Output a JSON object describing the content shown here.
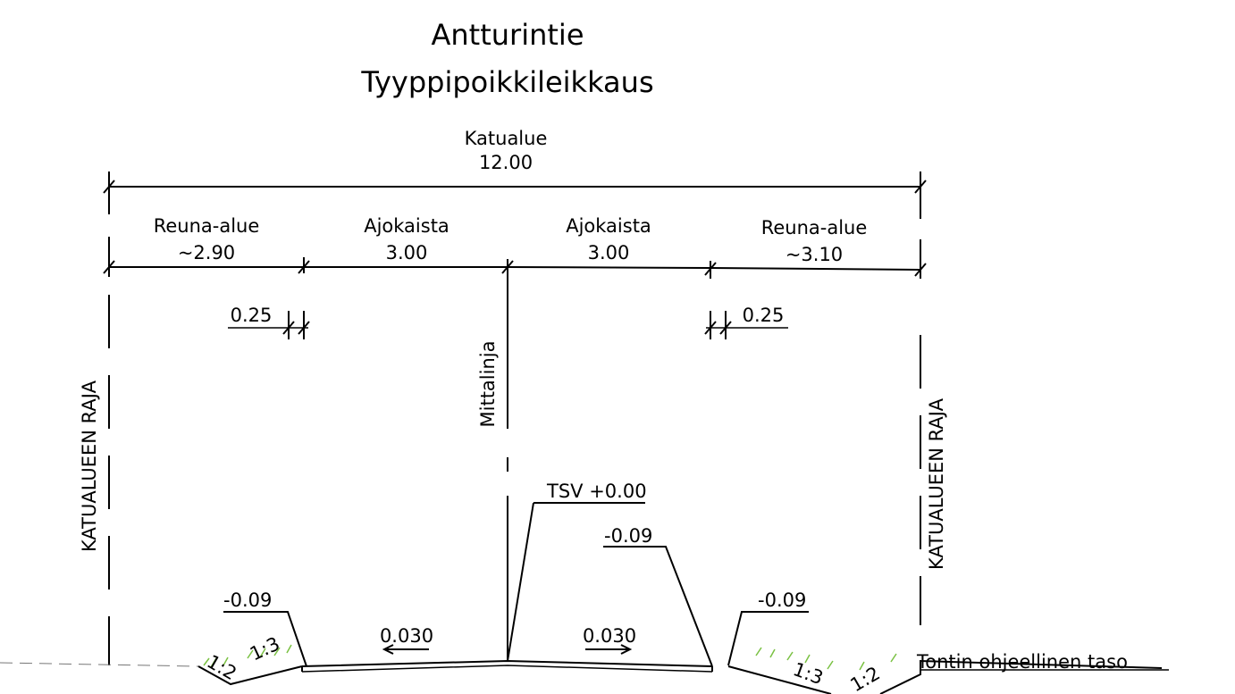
{
  "title": "Antturintie",
  "subtitle": "Tyyppipoikkileikkaus",
  "total": {
    "label": "Katualue",
    "value": "12.00"
  },
  "segments": [
    {
      "label": "Reuna-alue",
      "value": "~2.90"
    },
    {
      "label": "Ajokaista",
      "value": "3.00"
    },
    {
      "label": "Ajokaista",
      "value": "3.00"
    },
    {
      "label": "Reuna-alue",
      "value": "~3.10"
    }
  ],
  "offsets": [
    "0.25",
    "0.25"
  ],
  "boundary_labels": [
    "KATUALUEEN RAJA",
    "KATUALUEEN RAJA"
  ],
  "centerline_label": "Mittalinja",
  "elevations": [
    "TSV +0.00",
    "-0.09",
    "-0.09",
    "-0.09"
  ],
  "cross_falls": [
    "0.030",
    "0.030"
  ],
  "slopes": [
    "1:2",
    "1:3",
    "1:3",
    "1:2"
  ],
  "ground_label": "Tontin ohjeellinen taso"
}
